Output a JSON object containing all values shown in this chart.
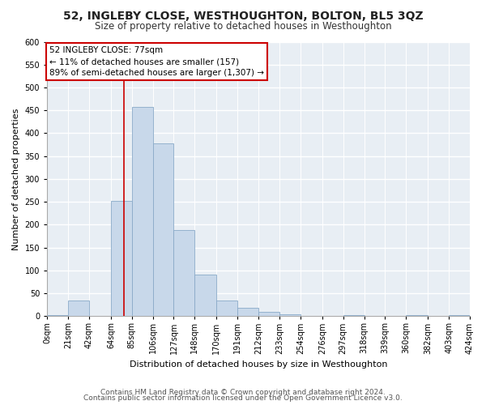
{
  "title": "52, INGLEBY CLOSE, WESTHOUGHTON, BOLTON, BL5 3QZ",
  "subtitle": "Size of property relative to detached houses in Westhoughton",
  "xlabel": "Distribution of detached houses by size in Westhoughton",
  "ylabel": "Number of detached properties",
  "bin_edges": [
    0,
    21,
    42,
    64,
    85,
    106,
    127,
    148,
    170,
    191,
    212,
    233,
    254,
    276,
    297,
    318,
    339,
    360,
    382,
    403,
    424
  ],
  "bin_labels": [
    "0sqm",
    "21sqm",
    "42sqm",
    "64sqm",
    "85sqm",
    "106sqm",
    "127sqm",
    "148sqm",
    "170sqm",
    "191sqm",
    "212sqm",
    "233sqm",
    "254sqm",
    "276sqm",
    "297sqm",
    "318sqm",
    "339sqm",
    "360sqm",
    "382sqm",
    "403sqm",
    "424sqm"
  ],
  "bar_heights": [
    3,
    35,
    0,
    252,
    458,
    378,
    188,
    91,
    35,
    18,
    10,
    5,
    0,
    0,
    3,
    0,
    0,
    3,
    0,
    3
  ],
  "bar_color": "#c8d8ea",
  "bar_edge_color": "#8aaac8",
  "reference_line_x": 77,
  "reference_line_color": "#cc0000",
  "annotation_text": "52 INGLEBY CLOSE: 77sqm\n← 11% of detached houses are smaller (157)\n89% of semi-detached houses are larger (1,307) →",
  "annotation_box_color": "#ffffff",
  "annotation_box_edge": "#cc0000",
  "ylim": [
    0,
    600
  ],
  "yticks": [
    0,
    50,
    100,
    150,
    200,
    250,
    300,
    350,
    400,
    450,
    500,
    550,
    600
  ],
  "footer1": "Contains HM Land Registry data © Crown copyright and database right 2024.",
  "footer2": "Contains public sector information licensed under the Open Government Licence v3.0.",
  "bg_color": "#ffffff",
  "plot_bg_color": "#e8eef4",
  "grid_color": "#ffffff",
  "title_fontsize": 10,
  "subtitle_fontsize": 8.5,
  "axis_label_fontsize": 8,
  "tick_fontsize": 7,
  "footer_fontsize": 6.5,
  "annotation_fontsize": 7.5
}
